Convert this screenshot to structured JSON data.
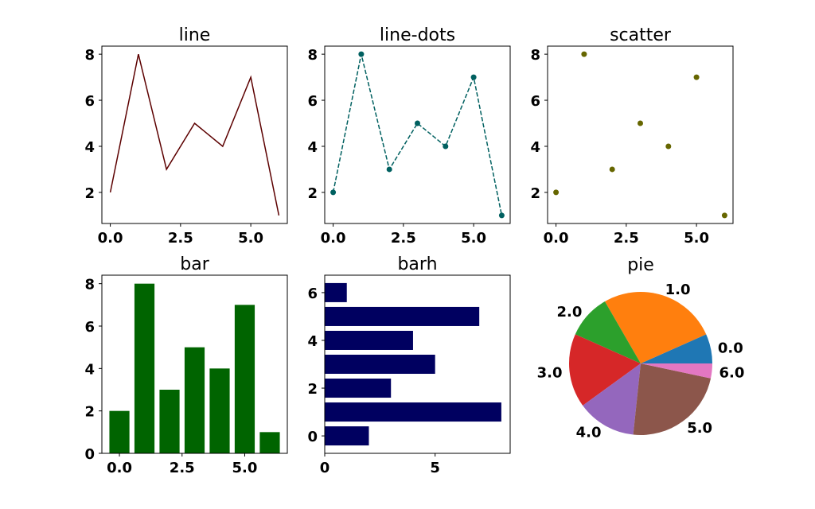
{
  "chart_data": [
    {
      "type": "line",
      "title": "line",
      "x": [
        0,
        1,
        2,
        3,
        4,
        5,
        6
      ],
      "y": [
        2,
        8,
        3,
        5,
        4,
        7,
        1
      ],
      "color": "#5c0000",
      "linestyle": "solid",
      "xlim": [
        -0.3,
        6.3
      ],
      "ylim": [
        0.65,
        8.35
      ],
      "xticks": [
        "0.0",
        "2.5",
        "5.0"
      ],
      "xtick_values": [
        0,
        2.5,
        5
      ],
      "yticks": [
        "2",
        "4",
        "6",
        "8"
      ],
      "ytick_values": [
        2,
        4,
        6,
        8
      ]
    },
    {
      "type": "line",
      "title": "line-dots",
      "x": [
        0,
        1,
        2,
        3,
        4,
        5,
        6
      ],
      "y": [
        2,
        8,
        3,
        5,
        4,
        7,
        1
      ],
      "color": "#006060",
      "linestyle": "dashed",
      "markers": true,
      "xlim": [
        -0.3,
        6.3
      ],
      "ylim": [
        0.65,
        8.35
      ],
      "xticks": [
        "0.0",
        "2.5",
        "5.0"
      ],
      "xtick_values": [
        0,
        2.5,
        5
      ],
      "yticks": [
        "2",
        "4",
        "6",
        "8"
      ],
      "ytick_values": [
        2,
        4,
        6,
        8
      ]
    },
    {
      "type": "scatter",
      "title": "scatter",
      "x": [
        0,
        1,
        2,
        3,
        4,
        5,
        6
      ],
      "y": [
        2,
        8,
        3,
        5,
        4,
        7,
        1
      ],
      "color": "#666600",
      "xlim": [
        -0.3,
        6.3
      ],
      "ylim": [
        0.65,
        8.35
      ],
      "xticks": [
        "0.0",
        "2.5",
        "5.0"
      ],
      "xtick_values": [
        0,
        2.5,
        5
      ],
      "yticks": [
        "2",
        "4",
        "6",
        "8"
      ],
      "ytick_values": [
        2,
        4,
        6,
        8
      ]
    },
    {
      "type": "bar",
      "title": "bar",
      "x": [
        0,
        1,
        2,
        3,
        4,
        5,
        6
      ],
      "values": [
        2,
        8,
        3,
        5,
        4,
        7,
        1
      ],
      "color": "#006400",
      "xlim": [
        -0.7,
        6.7
      ],
      "ylim": [
        0,
        8.4
      ],
      "xticks": [
        "0.0",
        "2.5",
        "5.0"
      ],
      "xtick_values": [
        0,
        2.5,
        5
      ],
      "yticks": [
        "0",
        "2",
        "4",
        "6",
        "8"
      ],
      "ytick_values": [
        0,
        2,
        4,
        6,
        8
      ]
    },
    {
      "type": "barh",
      "title": "barh",
      "y": [
        0,
        1,
        2,
        3,
        4,
        5,
        6
      ],
      "values": [
        2,
        8,
        3,
        5,
        4,
        7,
        1
      ],
      "color": "#000060",
      "xlim": [
        0,
        8.4
      ],
      "ylim": [
        -0.73,
        6.73
      ],
      "xticks": [
        "0",
        "5"
      ],
      "xtick_values": [
        0,
        5
      ],
      "yticks": [
        "0",
        "2",
        "4",
        "6"
      ],
      "ytick_values": [
        0,
        2,
        4,
        6
      ]
    },
    {
      "type": "pie",
      "title": "pie",
      "labels": [
        "0.0",
        "1.0",
        "2.0",
        "3.0",
        "4.0",
        "5.0",
        "6.0"
      ],
      "values": [
        2,
        8,
        3,
        5,
        4,
        7,
        1
      ],
      "colors": [
        "#1f77b4",
        "#ff7f0e",
        "#2ca02c",
        "#d62728",
        "#9467bd",
        "#8c564b",
        "#e377c2"
      ]
    }
  ]
}
